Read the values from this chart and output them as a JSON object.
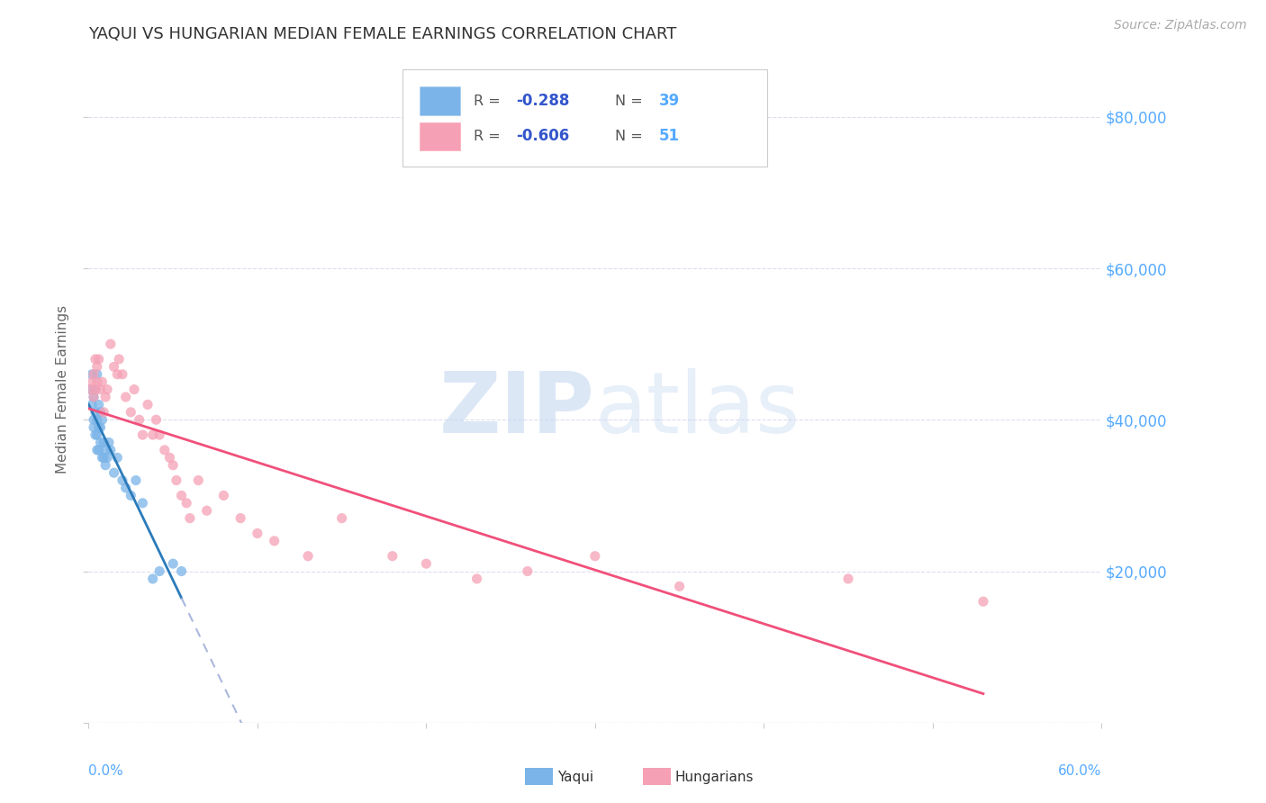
{
  "title": "YAQUI VS HUNGARIAN MEDIAN FEMALE EARNINGS CORRELATION CHART",
  "source": "Source: ZipAtlas.com",
  "ylabel": "Median Female Earnings",
  "y_ticks": [
    0,
    20000,
    40000,
    60000,
    80000
  ],
  "y_tick_labels": [
    "",
    "$20,000",
    "$40,000",
    "$60,000",
    "$80,000"
  ],
  "x_range": [
    0.0,
    0.6
  ],
  "y_range": [
    0,
    88000
  ],
  "yaqui_color": "#7ab4e8",
  "hungarian_color": "#f5a0b5",
  "yaqui_line_color": "#2b7bba",
  "hungarian_line_color": "#f0507a",
  "dashed_line_color": "#aab8dd",
  "background_color": "#ffffff",
  "grid_color": "#ddddee",
  "title_color": "#333333",
  "source_color": "#aaaaaa",
  "axis_label_color": "#55aaff",
  "legend_r_color": "#3355cc",
  "legend_n_color": "#55aaff",
  "yaqui_x": [
    0.001,
    0.002,
    0.002,
    0.003,
    0.003,
    0.004,
    0.004,
    0.004,
    0.005,
    0.005,
    0.005,
    0.006,
    0.006,
    0.006,
    0.007,
    0.007,
    0.008,
    0.008,
    0.009,
    0.01,
    0.01,
    0.011,
    0.012,
    0.013,
    0.015,
    0.017,
    0.02,
    0.022,
    0.025,
    0.028,
    0.032,
    0.038,
    0.042,
    0.05,
    0.055,
    0.003,
    0.005,
    0.007,
    0.009
  ],
  "yaqui_y": [
    44000,
    46000,
    42000,
    43000,
    39000,
    44000,
    41000,
    38000,
    46000,
    40000,
    36000,
    42000,
    39000,
    36000,
    41000,
    37000,
    40000,
    35000,
    37000,
    36000,
    34000,
    35000,
    37000,
    36000,
    33000,
    35000,
    32000,
    31000,
    30000,
    32000,
    29000,
    19000,
    20000,
    21000,
    20000,
    40000,
    38000,
    39000,
    35000
  ],
  "hungarian_x": [
    0.001,
    0.002,
    0.003,
    0.003,
    0.004,
    0.004,
    0.005,
    0.005,
    0.006,
    0.007,
    0.008,
    0.009,
    0.01,
    0.011,
    0.013,
    0.015,
    0.017,
    0.018,
    0.02,
    0.022,
    0.025,
    0.027,
    0.03,
    0.032,
    0.035,
    0.038,
    0.04,
    0.042,
    0.045,
    0.048,
    0.05,
    0.052,
    0.055,
    0.058,
    0.06,
    0.065,
    0.07,
    0.08,
    0.09,
    0.1,
    0.11,
    0.13,
    0.15,
    0.18,
    0.2,
    0.23,
    0.26,
    0.3,
    0.35,
    0.45,
    0.53
  ],
  "hungarian_y": [
    44000,
    45000,
    46000,
    43000,
    48000,
    44000,
    47000,
    45000,
    48000,
    44000,
    45000,
    41000,
    43000,
    44000,
    50000,
    47000,
    46000,
    48000,
    46000,
    43000,
    41000,
    44000,
    40000,
    38000,
    42000,
    38000,
    40000,
    38000,
    36000,
    35000,
    34000,
    32000,
    30000,
    29000,
    27000,
    32000,
    28000,
    30000,
    27000,
    25000,
    24000,
    22000,
    27000,
    22000,
    21000,
    19000,
    20000,
    22000,
    18000,
    19000,
    16000
  ],
  "watermark_zip": "ZIP",
  "watermark_atlas": "atlas"
}
